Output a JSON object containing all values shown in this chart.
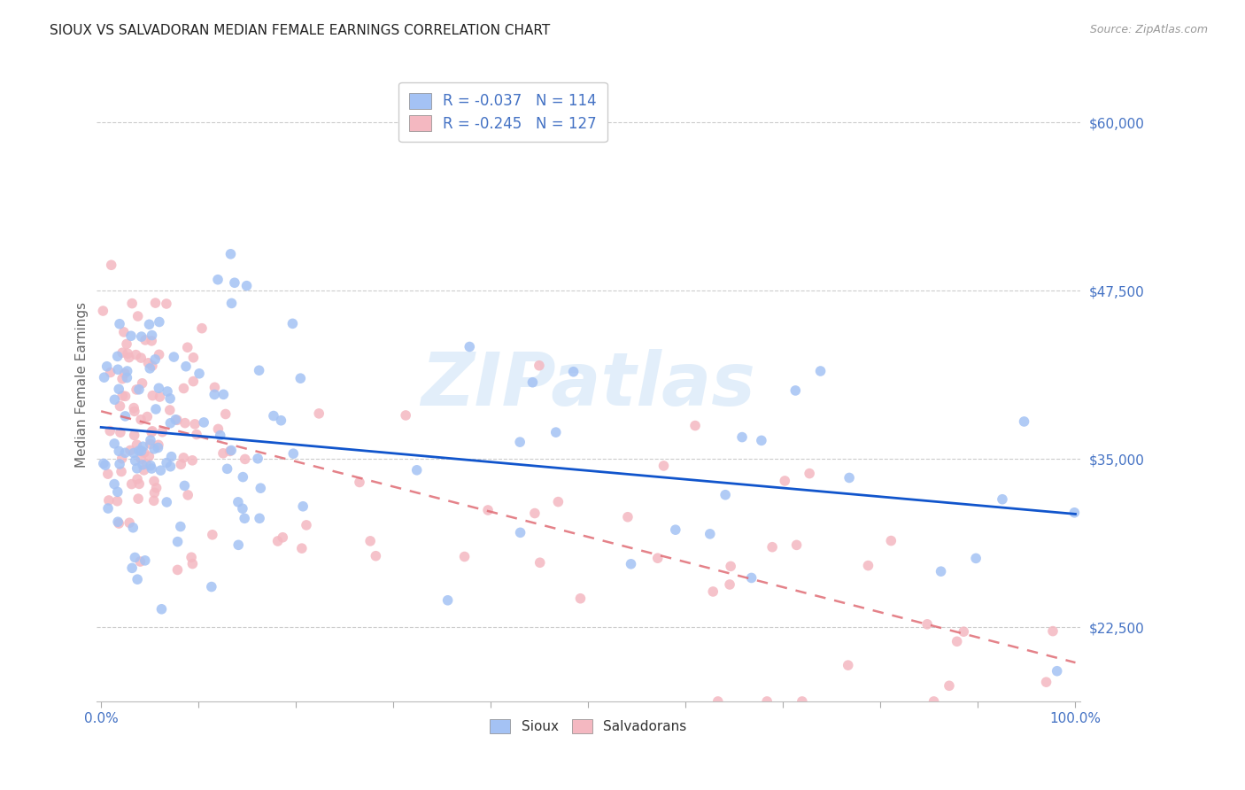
{
  "title": "SIOUX VS SALVADORAN MEDIAN FEMALE EARNINGS CORRELATION CHART",
  "source": "Source: ZipAtlas.com",
  "ylabel": "Median Female Earnings",
  "yticks": [
    22500,
    35000,
    47500,
    60000
  ],
  "ytick_labels": [
    "$22,500",
    "$35,000",
    "$47,500",
    "$60,000"
  ],
  "ylim": [
    17000,
    64000
  ],
  "xlim": [
    -0.005,
    1.005
  ],
  "xtick_pos": [
    0.0,
    0.1,
    0.2,
    0.3,
    0.4,
    0.5,
    0.6,
    0.7,
    0.8,
    0.9,
    1.0
  ],
  "xtick_labels": [
    "0.0%",
    "",
    "",
    "",
    "",
    "",
    "",
    "",
    "",
    "",
    "100.0%"
  ],
  "sioux_R": -0.037,
  "sioux_N": 114,
  "salvadoran_R": -0.245,
  "salvadoran_N": 127,
  "sioux_color": "#a4c2f4",
  "salvadoran_color": "#f4b8c1",
  "trend_sioux_color": "#1155cc",
  "trend_salvadoran_color": "#e06c75",
  "background_color": "#ffffff",
  "grid_color": "#cccccc",
  "title_color": "#222222",
  "axis_label_color": "#666666",
  "tick_label_color": "#4472c4",
  "watermark_color": "#d0e4f7",
  "watermark_text": "ZIPatlas",
  "legend_box_sioux": "#a4c2f4",
  "legend_box_salvadoran": "#f4b8c1",
  "legend_text_color": "#4472c4",
  "legend_N_color": "#222222"
}
